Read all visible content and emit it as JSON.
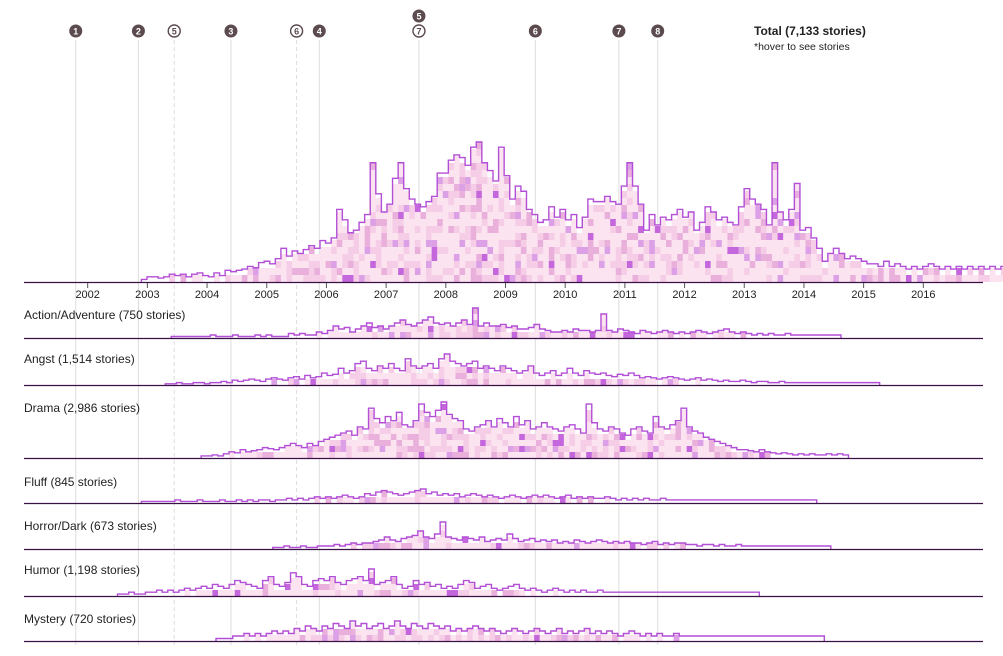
{
  "total": {
    "title": "Total (7,133 stories)",
    "note": "*hover to see stories"
  },
  "colors": {
    "outline": "#b34fd6",
    "baseline": "#3a1144",
    "marker_fill": "#5b4a4e",
    "guide_line": "#dddddd",
    "cell_light": "#fbe3ef",
    "cell_mid": "#eab0dc",
    "cell_dark": "#c467dd"
  },
  "markers": [
    {
      "label": "1",
      "year": 2001.8,
      "style": "solid"
    },
    {
      "label": "2",
      "year": 2002.85,
      "style": "solid"
    },
    {
      "label": "5",
      "year": 2003.45,
      "style": "dashed"
    },
    {
      "label": "3",
      "year": 2004.4,
      "style": "solid"
    },
    {
      "label": "6",
      "year": 2005.5,
      "style": "dashed"
    },
    {
      "label": "4",
      "year": 2005.88,
      "style": "solid"
    },
    {
      "label": "5",
      "year": 2007.55,
      "style": "solid",
      "stack": "top"
    },
    {
      "label": "7",
      "year": 2007.55,
      "style": "dashed"
    },
    {
      "label": "6",
      "year": 2009.5,
      "style": "solid"
    },
    {
      "label": "7",
      "year": 2010.9,
      "style": "solid"
    },
    {
      "label": "8",
      "year": 2011.55,
      "style": "solid"
    }
  ],
  "chart_data": {
    "type": "area",
    "x_axis": {
      "ticks": [
        "2002",
        "2003",
        "2004",
        "2005",
        "2006",
        "2007",
        "2008",
        "2009",
        "2010",
        "2011",
        "2012",
        "2013",
        "2014",
        "2015",
        "2016"
      ],
      "range": [
        2001,
        2017
      ]
    },
    "series": [
      {
        "name": "Total (7,133 stories)",
        "start": 2002.9,
        "values": [
          2,
          4,
          4,
          3,
          4,
          6,
          5,
          6,
          4,
          6,
          7,
          5,
          4,
          7,
          5,
          9,
          8,
          9,
          10,
          12,
          11,
          15,
          16,
          14,
          18,
          26,
          20,
          24,
          22,
          25,
          28,
          26,
          32,
          30,
          34,
          56,
          48,
          38,
          40,
          46,
          52,
          92,
          68,
          54,
          60,
          80,
          92,
          72,
          64,
          60,
          58,
          62,
          66,
          84,
          84,
          94,
          98,
          96,
          90,
          104,
          108,
          92,
          86,
          78,
          104,
          82,
          64,
          74,
          70,
          56,
          52,
          46,
          48,
          58,
          50,
          56,
          48,
          52,
          42,
          50,
          64,
          62,
          62,
          66,
          62,
          60,
          74,
          92,
          74,
          60,
          40,
          52,
          44,
          50,
          48,
          52,
          56,
          50,
          54,
          40,
          46,
          58,
          54,
          48,
          50,
          46,
          44,
          58,
          72,
          64,
          60,
          56,
          44,
          92,
          54,
          48,
          56,
          76,
          40,
          42,
          34,
          26,
          16,
          22,
          26,
          22,
          18,
          20,
          18,
          16,
          14,
          14,
          12,
          16,
          12,
          14,
          12,
          10,
          12,
          10,
          12,
          14,
          12,
          10,
          12,
          10,
          12,
          10,
          12,
          10,
          12,
          10,
          12,
          10,
          12,
          10,
          12,
          10,
          12,
          10,
          12,
          10,
          12,
          10,
          12,
          10,
          12,
          10,
          12,
          10,
          12,
          10,
          12,
          14,
          10,
          8
        ]
      },
      {
        "name": "Action/Adventure (750 stories)",
        "start": 2003.4,
        "values": [
          1,
          1,
          1,
          1,
          1,
          1,
          1,
          2,
          1,
          1,
          1,
          2,
          1,
          1,
          1,
          2,
          1,
          2,
          1,
          1,
          1,
          3,
          2,
          3,
          2,
          2,
          4,
          3,
          5,
          8,
          6,
          7,
          4,
          6,
          8,
          10,
          7,
          8,
          6,
          8,
          10,
          12,
          9,
          8,
          10,
          12,
          14,
          10,
          9,
          10,
          8,
          10,
          12,
          9,
          20,
          8,
          10,
          8,
          8,
          9,
          7,
          8,
          6,
          6,
          7,
          9,
          6,
          5,
          4,
          4,
          5,
          4,
          6,
          5,
          5,
          4,
          5,
          16,
          5,
          4,
          6,
          5,
          4,
          3,
          5,
          4,
          3,
          4,
          5,
          4,
          3,
          4,
          3,
          4,
          5,
          4,
          3,
          4,
          5,
          6,
          4,
          3,
          4,
          3,
          2,
          3,
          2,
          3,
          2,
          2,
          3,
          2,
          2,
          2,
          2,
          2,
          2,
          2,
          2,
          2
        ]
      },
      {
        "name": "Angst (1,514 stories)",
        "start": 2003.3,
        "values": [
          1,
          1,
          2,
          1,
          1,
          2,
          2,
          1,
          2,
          2,
          3,
          2,
          4,
          3,
          4,
          5,
          4,
          3,
          5,
          6,
          5,
          4,
          6,
          7,
          5,
          8,
          6,
          7,
          10,
          8,
          9,
          14,
          10,
          12,
          18,
          20,
          14,
          12,
          16,
          14,
          18,
          14,
          12,
          22,
          16,
          14,
          16,
          18,
          14,
          22,
          26,
          20,
          18,
          16,
          18,
          20,
          14,
          16,
          14,
          12,
          16,
          14,
          12,
          10,
          12,
          16,
          10,
          8,
          10,
          12,
          8,
          10,
          14,
          10,
          8,
          12,
          10,
          9,
          10,
          8,
          7,
          9,
          8,
          10,
          8,
          6,
          7,
          6,
          5,
          6,
          7,
          6,
          5,
          4,
          5,
          6,
          4,
          5,
          4,
          3,
          4,
          3,
          3,
          4,
          3,
          2,
          3,
          3,
          2,
          2,
          3,
          2,
          2,
          2,
          2,
          2,
          2,
          2,
          2,
          2,
          2,
          2,
          2,
          2,
          2,
          2,
          2,
          2
        ]
      },
      {
        "name": "Drama (2,986 stories)",
        "start": 2003.9,
        "values": [
          2,
          2,
          3,
          2,
          4,
          6,
          5,
          8,
          6,
          7,
          8,
          10,
          9,
          8,
          10,
          12,
          14,
          12,
          10,
          14,
          12,
          16,
          18,
          20,
          22,
          24,
          26,
          22,
          30,
          28,
          48,
          38,
          34,
          40,
          36,
          44,
          32,
          30,
          36,
          52,
          44,
          40,
          46,
          54,
          42,
          38,
          36,
          28,
          26,
          30,
          32,
          36,
          30,
          38,
          34,
          30,
          40,
          32,
          36,
          28,
          30,
          34,
          30,
          28,
          26,
          30,
          32,
          28,
          24,
          52,
          34,
          28,
          26,
          30,
          28,
          24,
          22,
          28,
          30,
          26,
          24,
          40,
          30,
          28,
          32,
          36,
          48,
          30,
          26,
          24,
          20,
          18,
          16,
          14,
          12,
          10,
          8,
          8,
          7,
          6,
          8,
          6,
          5,
          4,
          5,
          4,
          3,
          4,
          3,
          4,
          3,
          3,
          4,
          3,
          4,
          3
        ]
      },
      {
        "name": "Fluff (845 stories)",
        "start": 2002.9,
        "values": [
          1,
          1,
          1,
          1,
          1,
          1,
          2,
          1,
          1,
          1,
          2,
          1,
          1,
          1,
          2,
          1,
          1,
          2,
          1,
          2,
          1,
          2,
          2,
          1,
          2,
          2,
          3,
          2,
          3,
          2,
          3,
          4,
          3,
          4,
          3,
          4,
          5,
          4,
          3,
          4,
          6,
          5,
          7,
          8,
          7,
          6,
          5,
          6,
          7,
          8,
          9,
          6,
          7,
          5,
          6,
          5,
          6,
          4,
          5,
          6,
          5,
          4,
          5,
          4,
          3,
          4,
          5,
          4,
          3,
          4,
          5,
          4,
          5,
          4,
          3,
          4,
          5,
          3,
          4,
          3,
          4,
          3,
          3,
          4,
          3,
          2,
          3,
          2,
          3,
          2,
          3,
          2,
          2,
          3,
          2,
          2,
          2,
          2,
          2,
          2,
          2,
          2,
          2,
          2,
          2,
          2,
          2,
          2,
          2,
          2,
          2,
          2,
          2,
          2,
          2,
          2,
          2,
          2,
          2,
          2,
          2
        ]
      },
      {
        "name": "Horror/Dark (673 stories)",
        "start": 2005.1,
        "values": [
          1,
          1,
          2,
          1,
          1,
          2,
          1,
          1,
          2,
          2,
          2,
          3,
          2,
          3,
          4,
          3,
          4,
          4,
          5,
          6,
          8,
          6,
          5,
          7,
          8,
          9,
          12,
          8,
          7,
          10,
          18,
          8,
          7,
          6,
          8,
          7,
          6,
          8,
          5,
          6,
          7,
          6,
          10,
          7,
          5,
          6,
          7,
          5,
          6,
          5,
          6,
          4,
          5,
          4,
          6,
          5,
          4,
          5,
          6,
          5,
          4,
          5,
          4,
          5,
          4,
          4,
          3,
          4,
          5,
          3,
          4,
          3,
          4,
          4,
          3,
          3,
          2,
          3,
          3,
          2,
          3,
          2,
          2,
          3,
          2,
          2,
          2,
          2,
          2,
          2,
          2,
          2,
          2,
          2,
          2,
          2,
          2,
          2,
          2,
          2
        ]
      },
      {
        "name": "Humor (1,198 stories)",
        "start": 2002.5,
        "values": [
          1,
          1,
          2,
          1,
          1,
          2,
          2,
          3,
          2,
          3,
          2,
          3,
          4,
          3,
          4,
          5,
          4,
          6,
          5,
          4,
          6,
          8,
          7,
          6,
          5,
          4,
          8,
          10,
          6,
          5,
          7,
          12,
          10,
          6,
          5,
          8,
          9,
          8,
          10,
          7,
          6,
          8,
          9,
          10,
          8,
          14,
          6,
          7,
          8,
          10,
          6,
          4,
          5,
          8,
          6,
          7,
          5,
          6,
          4,
          5,
          4,
          6,
          8,
          7,
          4,
          5,
          6,
          4,
          3,
          4,
          5,
          6,
          4,
          3,
          4,
          3,
          2,
          3,
          4,
          3,
          2,
          3,
          2,
          3,
          2,
          2,
          3,
          2,
          2,
          2,
          2,
          2,
          2,
          2,
          2,
          2,
          2,
          2,
          2,
          2,
          2,
          2,
          2,
          2,
          2,
          2,
          2,
          2,
          2,
          2,
          2,
          2,
          2,
          2,
          2
        ]
      },
      {
        "name": "Mystery (720 stories)",
        "start": 2004.15,
        "values": [
          1,
          1,
          1,
          2,
          2,
          3,
          2,
          3,
          2,
          3,
          4,
          3,
          4,
          3,
          5,
          4,
          6,
          5,
          4,
          6,
          5,
          7,
          6,
          5,
          8,
          6,
          7,
          5,
          6,
          7,
          5,
          6,
          8,
          6,
          5,
          7,
          6,
          5,
          7,
          6,
          5,
          6,
          4,
          5,
          4,
          5,
          6,
          5,
          4,
          5,
          4,
          3,
          4,
          5,
          4,
          3,
          4,
          5,
          4,
          3,
          4,
          5,
          3,
          4,
          3,
          4,
          5,
          3,
          4,
          3,
          4,
          3,
          2,
          3,
          4,
          3,
          2,
          3,
          2,
          3,
          2,
          2,
          3,
          2,
          2,
          2,
          2,
          2,
          2,
          2,
          2,
          2,
          2,
          2,
          2,
          2,
          2,
          2,
          2,
          2,
          2,
          2,
          2,
          2,
          2,
          2,
          2,
          2,
          2
        ]
      }
    ]
  }
}
